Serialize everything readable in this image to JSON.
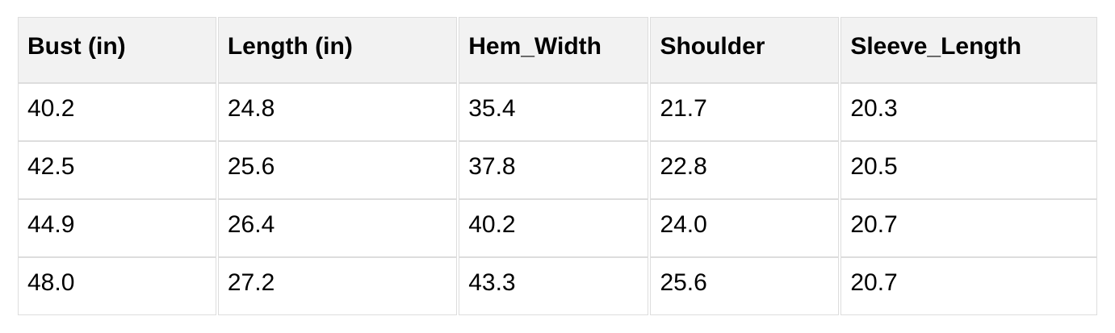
{
  "chart_data": {
    "type": "table",
    "title": "",
    "columns": [
      "Bust (in)",
      "Length (in)",
      "Hem_Width",
      "Shoulder",
      "Sleeve_Length"
    ],
    "rows": [
      [
        40.2,
        24.8,
        35.4,
        21.7,
        20.3
      ],
      [
        42.5,
        25.6,
        37.8,
        22.8,
        20.5
      ],
      [
        44.9,
        26.4,
        40.2,
        24.0,
        20.7
      ],
      [
        48.0,
        27.2,
        43.3,
        25.6,
        20.7
      ]
    ],
    "layout": {
      "header_row": true,
      "grid": true,
      "column_width_pct": [
        18.5,
        22.3,
        17.7,
        17.6,
        23.9
      ]
    }
  },
  "table": {
    "columns": [
      "Bust (in)",
      "Length (in)",
      "Hem_Width",
      "Shoulder",
      "Sleeve_Length"
    ],
    "rows": [
      [
        "40.2",
        "24.8",
        "35.4",
        "21.7",
        "20.3"
      ],
      [
        "42.5",
        "25.6",
        "37.8",
        "22.8",
        "20.5"
      ],
      [
        "44.9",
        "26.4",
        "40.2",
        "24.0",
        "20.7"
      ],
      [
        "48.0",
        "27.2",
        "43.3",
        "25.6",
        "20.7"
      ]
    ]
  },
  "colors": {
    "header_bg": "#f2f2f2",
    "border": "#dddddd",
    "text": "#000000",
    "page_bg": "#ffffff"
  }
}
